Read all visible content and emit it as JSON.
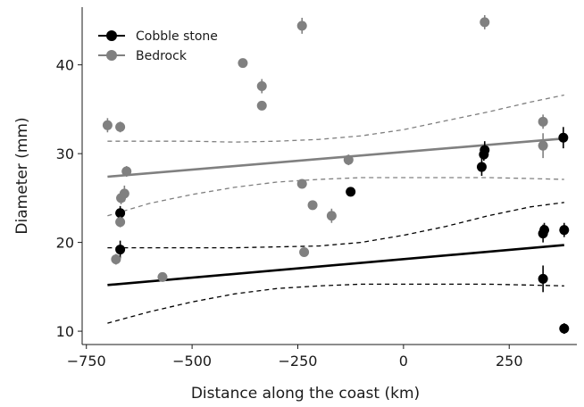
{
  "chart_data": {
    "type": "scatter",
    "xlabel": "Distance along the coast (km)",
    "ylabel": "Diameter (mm)",
    "xlim": [
      -760,
      410
    ],
    "ylim": [
      8.5,
      46.5
    ],
    "xticks": [
      -750,
      -500,
      -250,
      0,
      250
    ],
    "yticks": [
      10,
      20,
      30,
      40
    ],
    "xtick_labels": [
      "−750",
      "−500",
      "−250",
      "0",
      "250"
    ],
    "ytick_labels": [
      "10",
      "20",
      "30",
      "40"
    ],
    "grid": false,
    "legend_position": "top-left",
    "series": [
      {
        "name": "Cobble stone",
        "color": "#000000",
        "points": [
          {
            "x": -670,
            "y": 23.3,
            "err": 0.8
          },
          {
            "x": -670,
            "y": 19.2,
            "err": 1.0
          },
          {
            "x": -125,
            "y": 25.7,
            "err": 0.5
          },
          {
            "x": 185,
            "y": 28.5,
            "err": 1.0
          },
          {
            "x": 190,
            "y": 29.9,
            "err": 0.7
          },
          {
            "x": 192,
            "y": 30.4,
            "err": 1.0
          },
          {
            "x": 330,
            "y": 21.0,
            "err": 1.0
          },
          {
            "x": 333,
            "y": 21.4,
            "err": 0.8
          },
          {
            "x": 330,
            "y": 15.9,
            "err": 1.5
          },
          {
            "x": 378,
            "y": 31.8,
            "err": 1.2
          },
          {
            "x": 380,
            "y": 21.4,
            "err": 0.8
          },
          {
            "x": 380,
            "y": 10.3,
            "err": 0.6
          }
        ],
        "fit": {
          "x0": -700,
          "y0": 15.2,
          "x1": 380,
          "y1": 19.7
        },
        "ci_upper": [
          [
            -700,
            19.4
          ],
          [
            -600,
            19.4
          ],
          [
            -500,
            19.4
          ],
          [
            -400,
            19.4
          ],
          [
            -300,
            19.5
          ],
          [
            -200,
            19.6
          ],
          [
            -100,
            20.0
          ],
          [
            0,
            20.8
          ],
          [
            100,
            21.8
          ],
          [
            200,
            23.0
          ],
          [
            300,
            24.0
          ],
          [
            380,
            24.5
          ]
        ],
        "ci_lower": [
          [
            -700,
            10.9
          ],
          [
            -600,
            12.2
          ],
          [
            -500,
            13.3
          ],
          [
            -400,
            14.2
          ],
          [
            -300,
            14.8
          ],
          [
            -200,
            15.1
          ],
          [
            -100,
            15.3
          ],
          [
            0,
            15.3
          ],
          [
            100,
            15.3
          ],
          [
            200,
            15.3
          ],
          [
            300,
            15.2
          ],
          [
            380,
            15.1
          ]
        ]
      },
      {
        "name": "Bedrock",
        "color": "#808080",
        "points": [
          {
            "x": -700,
            "y": 33.2,
            "err": 0.8
          },
          {
            "x": -670,
            "y": 33.0,
            "err": 0.6
          },
          {
            "x": -680,
            "y": 18.1,
            "err": 0.6
          },
          {
            "x": -670,
            "y": 22.3,
            "err": 0.6
          },
          {
            "x": -668,
            "y": 25.0,
            "err": 0.7
          },
          {
            "x": -660,
            "y": 25.5,
            "err": 0.9
          },
          {
            "x": -655,
            "y": 28.0,
            "err": 0.6
          },
          {
            "x": -570,
            "y": 16.1,
            "err": 0.5
          },
          {
            "x": -380,
            "y": 40.2,
            "err": 0.5
          },
          {
            "x": -335,
            "y": 37.6,
            "err": 0.8
          },
          {
            "x": -335,
            "y": 35.4,
            "err": 0.5
          },
          {
            "x": -240,
            "y": 44.4,
            "err": 0.9
          },
          {
            "x": -240,
            "y": 26.6,
            "err": 0.5
          },
          {
            "x": -235,
            "y": 18.9,
            "err": 0.5
          },
          {
            "x": -215,
            "y": 24.2,
            "err": 0.5
          },
          {
            "x": -170,
            "y": 23.0,
            "err": 0.8
          },
          {
            "x": -130,
            "y": 29.3,
            "err": 0.6
          },
          {
            "x": 192,
            "y": 44.8,
            "err": 0.8
          },
          {
            "x": 330,
            "y": 33.6,
            "err": 0.8
          },
          {
            "x": 330,
            "y": 30.9,
            "err": 1.4
          }
        ],
        "fit": {
          "x0": -700,
          "y0": 27.4,
          "x1": 380,
          "y1": 31.7
        },
        "ci_upper": [
          [
            -700,
            31.4
          ],
          [
            -600,
            31.4
          ],
          [
            -500,
            31.4
          ],
          [
            -400,
            31.3
          ],
          [
            -300,
            31.4
          ],
          [
            -200,
            31.6
          ],
          [
            -100,
            32.0
          ],
          [
            0,
            32.7
          ],
          [
            100,
            33.7
          ],
          [
            200,
            34.7
          ],
          [
            300,
            35.8
          ],
          [
            380,
            36.6
          ]
        ],
        "ci_lower": [
          [
            -700,
            23.0
          ],
          [
            -600,
            24.4
          ],
          [
            -500,
            25.4
          ],
          [
            -400,
            26.2
          ],
          [
            -300,
            26.8
          ],
          [
            -200,
            27.1
          ],
          [
            -100,
            27.3
          ],
          [
            0,
            27.3
          ],
          [
            100,
            27.3
          ],
          [
            200,
            27.3
          ],
          [
            300,
            27.2
          ],
          [
            380,
            27.1
          ]
        ]
      }
    ]
  }
}
